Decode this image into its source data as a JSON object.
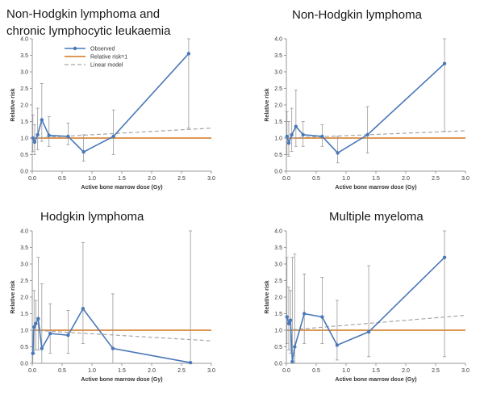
{
  "chart_data": [
    {
      "type": "line",
      "title_lines": [
        "Non-Hodgkin lymphoma and",
        "chronic lymphocytic leukaemia"
      ],
      "xlabel": "Active bone marrow dose (Gy)",
      "ylabel": "Relative risk",
      "xlim": [
        0,
        3
      ],
      "ylim": [
        0,
        4
      ],
      "xticks": [
        "0.0",
        "0.5",
        "1.0",
        "1.5",
        "2.0",
        "2.5",
        "3.0"
      ],
      "yticks": [
        "0.0",
        "0.5",
        "1.0",
        "1.5",
        "2.0",
        "2.5",
        "3.0",
        "3.5",
        "4.0"
      ],
      "legend": {
        "position": "top-left",
        "observed": "Observed",
        "reference": "Relative risk=1",
        "model": "Linear model"
      },
      "colors": {
        "observed": "#4a78b8",
        "reference": "#d9893e",
        "model": "#a6a6a6",
        "errorbar": "#999999"
      },
      "observed": {
        "x": [
          0.01,
          0.04,
          0.09,
          0.16,
          0.28,
          0.6,
          0.86,
          1.36,
          2.62
        ],
        "y": [
          1.0,
          0.88,
          1.1,
          1.55,
          1.08,
          1.05,
          0.58,
          1.05,
          3.55
        ],
        "lo": [
          0.6,
          0.5,
          0.65,
          0.9,
          0.75,
          0.8,
          0.3,
          0.5,
          1.3
        ],
        "hi": [
          1.7,
          1.4,
          1.9,
          2.65,
          1.65,
          1.45,
          1.1,
          1.85,
          4.0
        ]
      },
      "model": {
        "x": [
          0,
          3
        ],
        "y": [
          1.0,
          1.3
        ]
      }
    },
    {
      "type": "line",
      "title_lines": [
        "Non-Hodgkin lymphoma"
      ],
      "xlabel": "Active bone marrow dose (Gy)",
      "ylabel": "Relative risk",
      "xlim": [
        0,
        3
      ],
      "ylim": [
        0,
        4
      ],
      "xticks": [
        "0.0",
        "0.5",
        "1.0",
        "1.5",
        "2.0",
        "2.5",
        "3.0"
      ],
      "yticks": [
        "0.0",
        "0.5",
        "1.0",
        "1.5",
        "2.0",
        "2.5",
        "3.0",
        "3.5",
        "4.0"
      ],
      "colors": {
        "observed": "#4a78b8",
        "reference": "#d9893e",
        "model": "#a6a6a6",
        "errorbar": "#999999"
      },
      "observed": {
        "x": [
          0.01,
          0.04,
          0.09,
          0.16,
          0.28,
          0.6,
          0.86,
          1.36,
          2.65
        ],
        "y": [
          1.05,
          0.85,
          1.1,
          1.35,
          1.1,
          1.05,
          0.55,
          1.1,
          3.25
        ],
        "lo": [
          0.5,
          0.45,
          0.6,
          0.75,
          0.75,
          0.75,
          0.25,
          0.55,
          1.2
        ],
        "hi": [
          1.8,
          1.5,
          1.9,
          2.45,
          1.5,
          1.4,
          1.05,
          1.95,
          4.0
        ]
      },
      "model": {
        "x": [
          0,
          3
        ],
        "y": [
          1.0,
          1.22
        ]
      }
    },
    {
      "type": "line",
      "title_lines": [
        "Hodgkin lymphoma"
      ],
      "xlabel": "Active bone marrow dose (Gy)",
      "ylabel": "Relative risk",
      "xlim": [
        0,
        3
      ],
      "ylim": [
        0,
        4
      ],
      "xticks": [
        "0.0",
        "0.5",
        "1.0",
        "1.5",
        "2.0",
        "2.5",
        "3.0"
      ],
      "yticks": [
        "0.0",
        "0.5",
        "1.0",
        "1.5",
        "2.0",
        "2.5",
        "3.0",
        "3.5",
        "4.0"
      ],
      "colors": {
        "observed": "#4a78b8",
        "reference": "#d9893e",
        "model": "#a6a6a6",
        "errorbar": "#999999"
      },
      "observed": {
        "x": [
          0.01,
          0.03,
          0.06,
          0.1,
          0.16,
          0.3,
          0.6,
          0.85,
          1.35,
          2.65
        ],
        "y": [
          0.3,
          1.1,
          1.2,
          1.35,
          0.45,
          0.9,
          0.85,
          1.65,
          0.45,
          0.02
        ],
        "lo": [
          0.0,
          0.3,
          0.4,
          0.4,
          0.0,
          0.3,
          0.3,
          0.6,
          0.0,
          0.0
        ],
        "hi": [
          1.0,
          2.2,
          1.9,
          3.2,
          2.4,
          1.8,
          1.6,
          3.65,
          2.1,
          4.0
        ]
      },
      "model": {
        "x": [
          0,
          3
        ],
        "y": [
          1.0,
          0.68
        ]
      }
    },
    {
      "type": "line",
      "title_lines": [
        "Multiple myeloma"
      ],
      "xlabel": "Active bone marrow dose (Gy)",
      "ylabel": "Relative risk",
      "xlim": [
        0,
        3
      ],
      "ylim": [
        0,
        4
      ],
      "xticks": [
        "0.0",
        "0.5",
        "1.0",
        "1.5",
        "2.0",
        "2.5",
        "3.0"
      ],
      "yticks": [
        "0.0",
        "0.5",
        "1.0",
        "1.5",
        "2.0",
        "2.5",
        "3.0",
        "3.5",
        "4.0"
      ],
      "colors": {
        "observed": "#4a78b8",
        "reference": "#d9893e",
        "model": "#a6a6a6",
        "errorbar": "#999999"
      },
      "observed": {
        "x": [
          0.01,
          0.04,
          0.07,
          0.1,
          0.14,
          0.3,
          0.6,
          0.85,
          1.38,
          2.65
        ],
        "y": [
          1.4,
          1.2,
          1.3,
          0.05,
          0.5,
          1.5,
          1.4,
          0.55,
          0.95,
          3.2
        ],
        "lo": [
          0.6,
          0.4,
          0.3,
          0.0,
          0.0,
          0.6,
          0.6,
          0.1,
          0.2,
          0.2
        ],
        "hi": [
          3.2,
          2.3,
          2.2,
          3.2,
          3.3,
          2.7,
          2.6,
          1.9,
          2.95,
          4.0
        ]
      },
      "model": {
        "x": [
          0,
          3
        ],
        "y": [
          1.0,
          1.45
        ]
      }
    }
  ]
}
